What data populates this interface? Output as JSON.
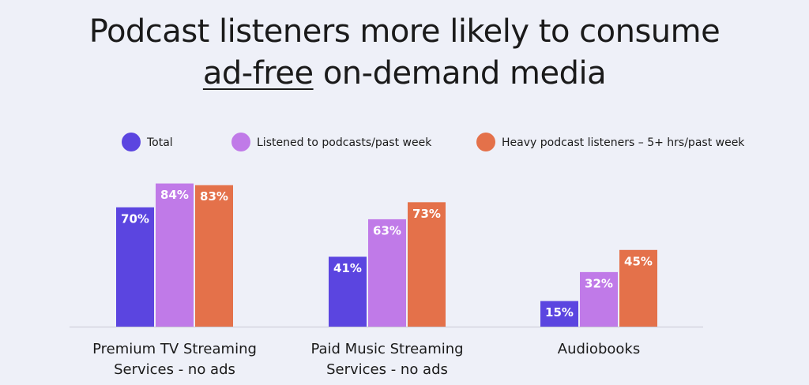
{
  "chart_data": {
    "type": "bar",
    "title_parts": [
      "Podcast listeners more likely to consume",
      "ad-free",
      "on-demand media"
    ],
    "categories": [
      "Premium TV Streaming Services - no ads",
      "Paid Music Streaming Services - no ads",
      "Audiobooks"
    ],
    "series": [
      {
        "name": "Total",
        "color": "#5b45e0",
        "values": [
          70,
          41,
          15
        ],
        "value_labels": [
          "70%",
          "41%",
          "15%"
        ]
      },
      {
        "name": "Listened to podcasts/past week",
        "color": "#c07ae8",
        "values": [
          84,
          63,
          32
        ],
        "value_labels": [
          "84%",
          "63%",
          "32%"
        ]
      },
      {
        "name": "Heavy podcast listeners – 5+ hrs/past week",
        "color": "#e4714a",
        "values": [
          83,
          73,
          45
        ],
        "value_labels": [
          "83%",
          "73%",
          "45%"
        ]
      }
    ],
    "ylim": [
      0,
      100
    ]
  }
}
